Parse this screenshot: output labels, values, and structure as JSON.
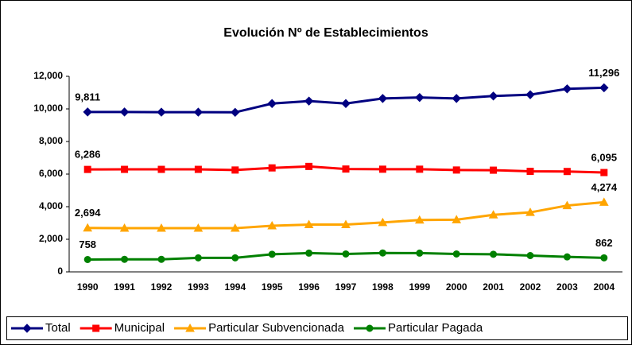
{
  "chart_data": {
    "type": "line",
    "title": "Evolución Nº de Establecimientos",
    "categories": [
      "1990",
      "1991",
      "1992",
      "1993",
      "1994",
      "1995",
      "1996",
      "1997",
      "1998",
      "1999",
      "2000",
      "2001",
      "2002",
      "2003",
      "2004"
    ],
    "series": [
      {
        "name": "Total",
        "color": "#000080",
        "marker": "diamond",
        "values": [
          9811,
          9811,
          9800,
          9800,
          9790,
          10330,
          10480,
          10330,
          10640,
          10700,
          10640,
          10790,
          10870,
          11230,
          11296
        ],
        "value_labels": [
          "9,811",
          null,
          null,
          null,
          null,
          null,
          null,
          null,
          null,
          null,
          null,
          null,
          null,
          null,
          "11,296"
        ]
      },
      {
        "name": "Municipal",
        "color": "#ff0000",
        "marker": "square",
        "values": [
          6286,
          6290,
          6290,
          6290,
          6250,
          6380,
          6470,
          6310,
          6300,
          6300,
          6250,
          6240,
          6170,
          6160,
          6095
        ],
        "value_labels": [
          "6,286",
          null,
          null,
          null,
          null,
          null,
          null,
          null,
          null,
          null,
          null,
          null,
          null,
          null,
          "6,095"
        ]
      },
      {
        "name": "Particular Subvencionada",
        "color": "#ffa500",
        "marker": "triangle",
        "values": [
          2694,
          2680,
          2680,
          2680,
          2680,
          2830,
          2900,
          2900,
          3030,
          3180,
          3200,
          3500,
          3650,
          4070,
          4274
        ],
        "value_labels": [
          "2,694",
          null,
          null,
          null,
          null,
          null,
          null,
          null,
          null,
          null,
          null,
          null,
          null,
          null,
          "4,274"
        ]
      },
      {
        "name": "Particular Pagada",
        "color": "#008000",
        "marker": "circle",
        "values": [
          758,
          770,
          770,
          860,
          860,
          1080,
          1150,
          1100,
          1160,
          1150,
          1100,
          1080,
          1000,
          920,
          862
        ],
        "value_labels": [
          "758",
          null,
          null,
          null,
          null,
          null,
          null,
          null,
          null,
          null,
          null,
          null,
          null,
          null,
          "862"
        ]
      }
    ],
    "ylim": [
      0,
      12000
    ],
    "yticks": [
      0,
      {
        "value": 2000,
        "label": "2,000"
      },
      {
        "value": 4000,
        "label": "4,000"
      },
      {
        "value": 6000,
        "label": "6,000"
      },
      {
        "value": 8000,
        "label": "8,000"
      },
      {
        "value": 10000,
        "label": "10,000"
      },
      {
        "value": 12000,
        "label": "12,000"
      }
    ],
    "legend": "bottom"
  }
}
